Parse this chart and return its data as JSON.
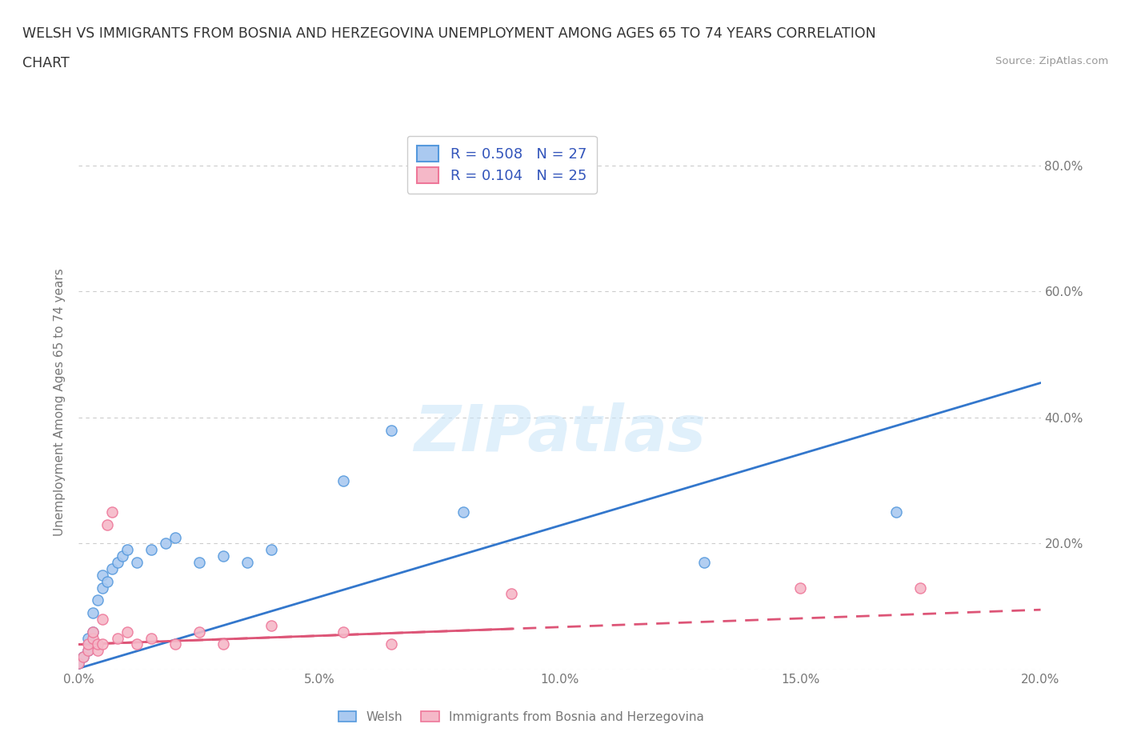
{
  "title_line1": "WELSH VS IMMIGRANTS FROM BOSNIA AND HERZEGOVINA UNEMPLOYMENT AMONG AGES 65 TO 74 YEARS CORRELATION",
  "title_line2": "CHART",
  "source_text": "Source: ZipAtlas.com",
  "ylabel": "Unemployment Among Ages 65 to 74 years",
  "xlim": [
    0.0,
    0.2
  ],
  "ylim": [
    0.0,
    0.85
  ],
  "xticks": [
    0.0,
    0.05,
    0.1,
    0.15,
    0.2
  ],
  "xtick_labels": [
    "0.0%",
    "5.0%",
    "10.0%",
    "15.0%",
    "20.0%"
  ],
  "yticks": [
    0.0,
    0.2,
    0.4,
    0.6,
    0.8
  ],
  "ytick_labels": [
    "",
    "20.0%",
    "40.0%",
    "60.0%",
    "80.0%"
  ],
  "welsh_color": "#aac9f0",
  "welsh_edge_color": "#5599dd",
  "welsh_line_color": "#3377cc",
  "bosnian_color": "#f5b8c8",
  "bosnian_edge_color": "#ee7799",
  "bosnian_line_color": "#dd5577",
  "welsh_R": 0.508,
  "welsh_N": 27,
  "bosnian_R": 0.104,
  "bosnian_N": 25,
  "legend_label_welsh": "Welsh",
  "legend_label_bosnian": "Immigrants from Bosnia and Herzegovina",
  "watermark_text": "ZIPatlas",
  "background_color": "#ffffff",
  "welsh_x": [
    0.0,
    0.001,
    0.002,
    0.002,
    0.003,
    0.003,
    0.004,
    0.005,
    0.005,
    0.006,
    0.007,
    0.008,
    0.009,
    0.01,
    0.012,
    0.015,
    0.018,
    0.02,
    0.025,
    0.03,
    0.035,
    0.04,
    0.055,
    0.065,
    0.08,
    0.13,
    0.17
  ],
  "welsh_y": [
    0.01,
    0.02,
    0.03,
    0.05,
    0.06,
    0.09,
    0.11,
    0.13,
    0.15,
    0.14,
    0.16,
    0.17,
    0.18,
    0.19,
    0.17,
    0.19,
    0.2,
    0.21,
    0.17,
    0.18,
    0.17,
    0.19,
    0.3,
    0.38,
    0.25,
    0.17,
    0.25
  ],
  "bosnian_x": [
    0.0,
    0.001,
    0.002,
    0.002,
    0.003,
    0.003,
    0.004,
    0.004,
    0.005,
    0.005,
    0.006,
    0.007,
    0.008,
    0.01,
    0.012,
    0.015,
    0.02,
    0.025,
    0.03,
    0.04,
    0.055,
    0.065,
    0.09,
    0.15,
    0.175
  ],
  "bosnian_y": [
    0.01,
    0.02,
    0.03,
    0.04,
    0.05,
    0.06,
    0.03,
    0.04,
    0.04,
    0.08,
    0.23,
    0.25,
    0.05,
    0.06,
    0.04,
    0.05,
    0.04,
    0.06,
    0.04,
    0.07,
    0.06,
    0.04,
    0.12,
    0.13,
    0.13
  ],
  "welsh_line_x0": 0.0,
  "welsh_line_x1": 0.2,
  "welsh_line_y0": 0.002,
  "welsh_line_y1": 0.455,
  "bosnian_line_x0": 0.0,
  "bosnian_line_x1": 0.2,
  "bosnian_line_y0": 0.04,
  "bosnian_line_y1": 0.095,
  "legend_text_color": "#3355bb",
  "axis_text_color": "#777777",
  "grid_color": "#cccccc",
  "title_color": "#333333"
}
